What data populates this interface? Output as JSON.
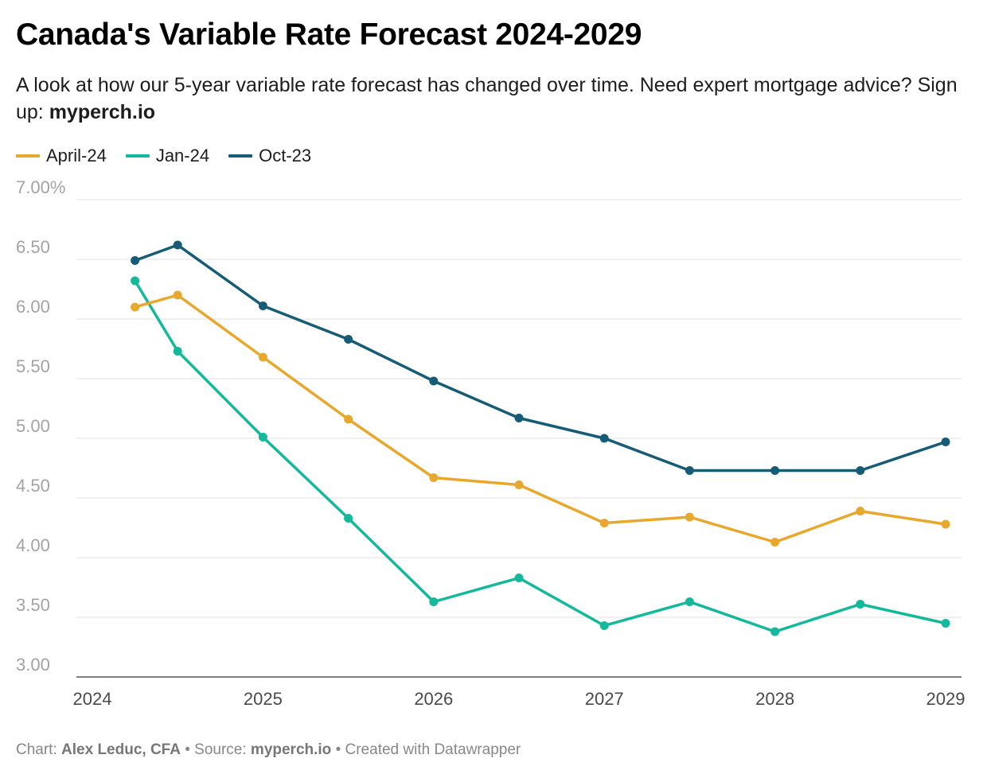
{
  "title": "Canada's Variable Rate Forecast 2024-2029",
  "subtitle": {
    "text": "A look at how our 5-year variable rate forecast has changed over time. Need expert mortgage advice? Sign up: ",
    "link": "myperch.io"
  },
  "footer": {
    "chart_label": "Chart: ",
    "author": "Alex Leduc, CFA",
    "sep1": " • Source: ",
    "source": "myperch.io",
    "sep2": " • Created with Datawrapper"
  },
  "chart_data": {
    "type": "line",
    "title": "Canada's Variable Rate Forecast 2024-2029",
    "xlabel": "",
    "ylabel": "",
    "xlim": [
      2024,
      2029
    ],
    "ylim": [
      3.0,
      7.0
    ],
    "x_ticks": [
      "2024",
      "2025",
      "2026",
      "2027",
      "2028",
      "2029"
    ],
    "x_tick_values": [
      2024,
      2025,
      2026,
      2027,
      2028,
      2029
    ],
    "y_ticks": [
      "3.00",
      "3.50",
      "4.00",
      "4.50",
      "5.00",
      "5.50",
      "6.00",
      "6.50",
      "7.00%"
    ],
    "y_tick_values": [
      3.0,
      3.5,
      4.0,
      4.5,
      5.0,
      5.5,
      6.0,
      6.5,
      7.0
    ],
    "grid": true,
    "legend_position": "top-left",
    "x": [
      2024.25,
      2024.5,
      2025.0,
      2025.5,
      2026.0,
      2026.5,
      2027.0,
      2027.5,
      2028.0,
      2028.5,
      2029.0
    ],
    "series": [
      {
        "name": "April-24",
        "color": "#e8a82e",
        "values": [
          6.1,
          6.2,
          5.68,
          5.16,
          4.67,
          4.61,
          4.29,
          4.34,
          4.13,
          4.39,
          4.28
        ]
      },
      {
        "name": "Jan-24",
        "color": "#13b99a",
        "values": [
          6.32,
          5.73,
          5.01,
          4.33,
          3.63,
          3.83,
          3.43,
          3.63,
          3.38,
          3.61,
          3.45
        ]
      },
      {
        "name": "Oct-23",
        "color": "#175c76",
        "values": [
          6.49,
          6.62,
          6.11,
          5.83,
          5.48,
          5.17,
          5.0,
          4.73,
          4.73,
          4.73,
          4.97
        ]
      }
    ]
  }
}
